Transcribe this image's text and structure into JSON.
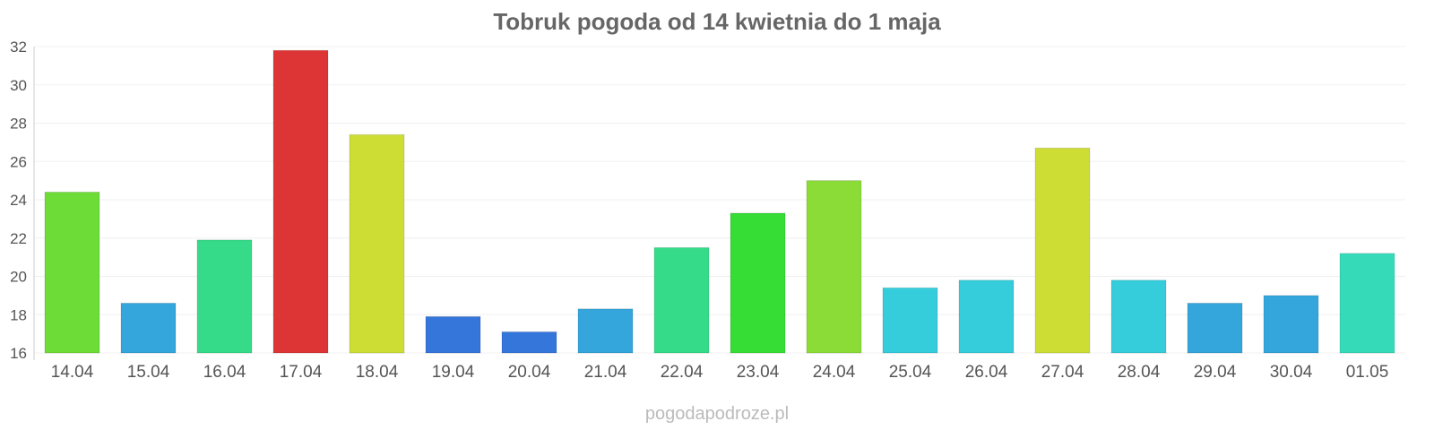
{
  "site_credit": "pogodapodroze.pl",
  "chart_data": {
    "type": "bar",
    "title": "Tobruk pogoda od 14 kwietnia do 1 maja",
    "xlabel": "",
    "ylabel": "",
    "ylim": [
      16,
      32
    ],
    "yticks": [
      16,
      18,
      20,
      22,
      24,
      26,
      28,
      30,
      32
    ],
    "grid": true,
    "legend": "none",
    "categories": [
      "14.04",
      "15.04",
      "16.04",
      "17.04",
      "18.04",
      "19.04",
      "20.04",
      "21.04",
      "22.04",
      "23.04",
      "24.04",
      "25.04",
      "26.04",
      "27.04",
      "28.04",
      "29.04",
      "30.04",
      "01.05"
    ],
    "values": [
      24.4,
      18.6,
      21.9,
      31.8,
      27.4,
      17.9,
      17.1,
      18.3,
      21.5,
      23.3,
      25.0,
      19.4,
      19.8,
      26.7,
      19.8,
      18.6,
      19.0,
      21.2
    ],
    "colors": [
      "#6ddc37",
      "#34a6db",
      "#35db89",
      "#dd3535",
      "#cddd33",
      "#3576db",
      "#3576db",
      "#34a6db",
      "#35db89",
      "#35dd35",
      "#8bdc37",
      "#35cddb",
      "#35cddb",
      "#cddd33",
      "#35cddb",
      "#34a6db",
      "#34a6db",
      "#35dbb9"
    ]
  }
}
